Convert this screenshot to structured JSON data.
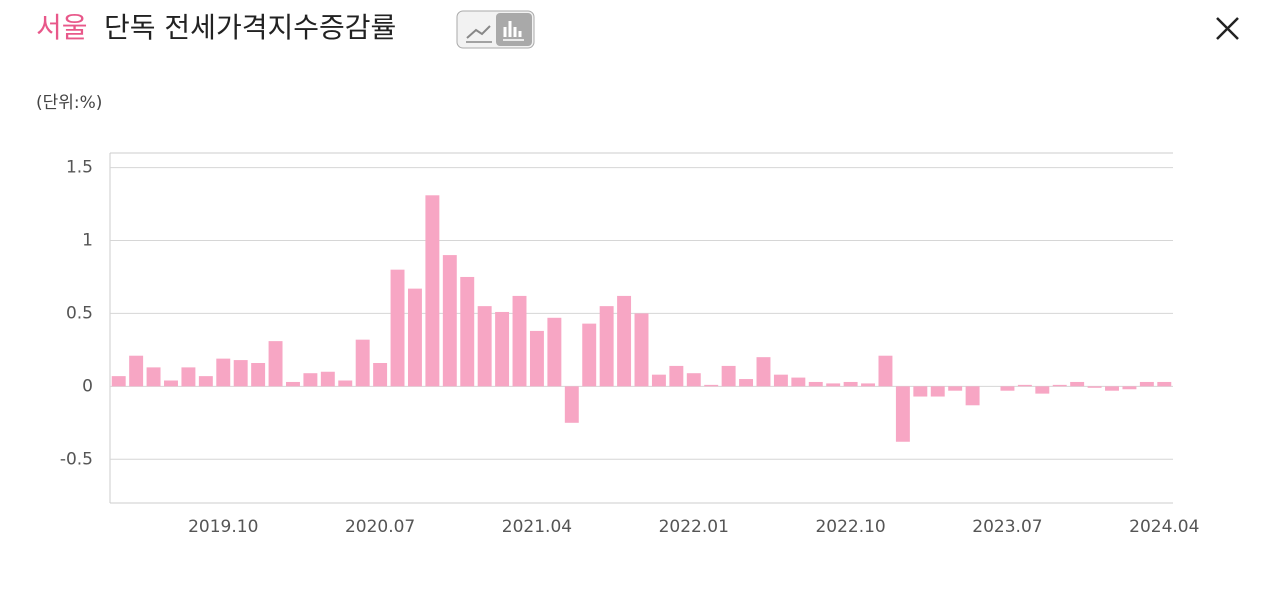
{
  "title_highlight": "서울",
  "title": "단독 전세가격지수증감률",
  "chart_data": {
    "type": "bar",
    "unit_label": "(단위:%)",
    "color": "#f7a6c4",
    "grid": true,
    "categories": [
      null,
      null,
      null,
      null,
      null,
      null,
      "2019.10",
      null,
      null,
      null,
      null,
      null,
      null,
      null,
      null,
      "2020.07",
      null,
      null,
      null,
      null,
      null,
      null,
      null,
      null,
      "2021.04",
      null,
      null,
      null,
      null,
      null,
      null,
      null,
      null,
      "2022.01",
      null,
      null,
      null,
      null,
      null,
      null,
      null,
      null,
      "2022.10",
      null,
      null,
      null,
      null,
      null,
      null,
      null,
      null,
      "2023.07",
      null,
      null,
      null,
      null,
      null,
      null,
      null,
      null,
      "2024.04"
    ],
    "values": [
      0.07,
      0.21,
      0.13,
      0.04,
      0.13,
      0.07,
      0.19,
      0.18,
      0.16,
      0.31,
      0.03,
      0.09,
      0.1,
      0.04,
      0.32,
      0.16,
      0.8,
      0.67,
      1.31,
      0.9,
      0.75,
      0.55,
      0.51,
      0.62,
      0.38,
      0.47,
      -0.25,
      0.43,
      0.55,
      0.62,
      0.5,
      0.08,
      0.14,
      0.09,
      0.01,
      0.14,
      0.05,
      0.2,
      0.08,
      0.06,
      0.03,
      0.02,
      0.03,
      0.02,
      0.21,
      -0.38,
      -0.07,
      -0.07,
      -0.03,
      -0.13,
      0,
      -0.03,
      0.01,
      -0.05,
      0.01,
      0.03,
      -0.01,
      -0.03,
      -0.02,
      0.03,
      0.03
    ],
    "ylim": [
      -0.8,
      1.6
    ],
    "yticks": [
      -0.5,
      0,
      0.5,
      1,
      1.5
    ]
  }
}
